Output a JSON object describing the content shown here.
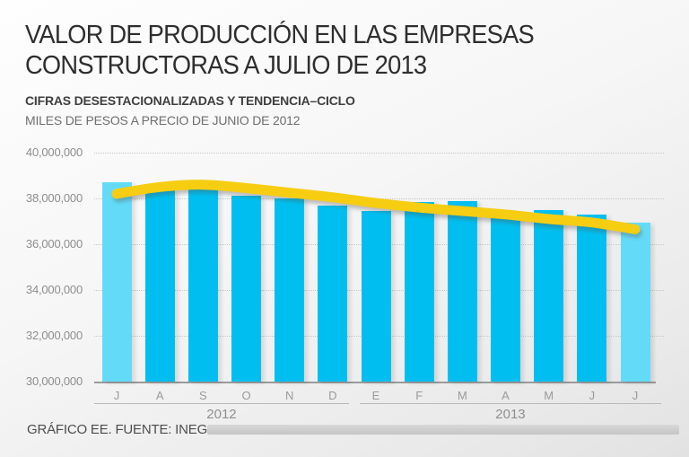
{
  "header": {
    "title_line1": "VALOR DE PRODUCCIÓN EN LAS EMPRESAS",
    "title_line2": "CONSTRUCTORAS A JULIO DE 2013",
    "subtitle": "CIFRAS DESESTACIONALIZADAS Y TENDENCIA–CICLO",
    "unit_note": "MILES DE PESOS A PRECIO DE JUNIO DE 2012"
  },
  "footer": {
    "source": "GRÁFICO EE. FUENTE: INEGI."
  },
  "colors": {
    "bar": "#00bff0",
    "bar_highlight": "#63dbf8",
    "trend_line": "#f7cd12",
    "grid": "#c6c6c6",
    "axis": "#9b9b9b",
    "label_gray": "#8d8d8d"
  },
  "chart_data": {
    "type": "bar",
    "title": "Valor de producción en las empresas constructoras a julio de 2013",
    "subtitle": "Cifras desestacionalizadas y tendencia-ciclo",
    "ylabel": "Miles de pesos a precio de junio de 2012",
    "xlabel": "",
    "categories": [
      "J",
      "A",
      "S",
      "O",
      "N",
      "D",
      "E",
      "F",
      "M",
      "A",
      "M",
      "J",
      "J"
    ],
    "year_groups": [
      {
        "label": "2012",
        "start": 0,
        "end": 5
      },
      {
        "label": "2013",
        "start": 6,
        "end": 12
      }
    ],
    "series": [
      {
        "name": "Cifras desestacionalizadas",
        "type": "bar",
        "values": [
          38700000,
          38350000,
          38450000,
          38100000,
          38000000,
          37700000,
          37450000,
          37850000,
          37900000,
          37250000,
          37500000,
          37300000,
          36950000
        ]
      },
      {
        "name": "Tendencia-ciclo",
        "type": "line",
        "values": [
          38200000,
          38500000,
          38600000,
          38450000,
          38250000,
          38050000,
          37800000,
          37600000,
          37450000,
          37300000,
          37100000,
          36950000,
          36650000
        ]
      }
    ],
    "highlight_bar_indices": [
      0,
      12
    ],
    "ylim": [
      30000000,
      40000000
    ],
    "yticks": [
      30000000,
      32000000,
      34000000,
      36000000,
      38000000,
      40000000
    ],
    "ytick_labels": [
      "30,000,000",
      "32,000,000",
      "34,000,000",
      "36,000,000",
      "38,000,000",
      "40,000,000"
    ],
    "grid": "horizontal-dotted",
    "legend_position": "none"
  }
}
